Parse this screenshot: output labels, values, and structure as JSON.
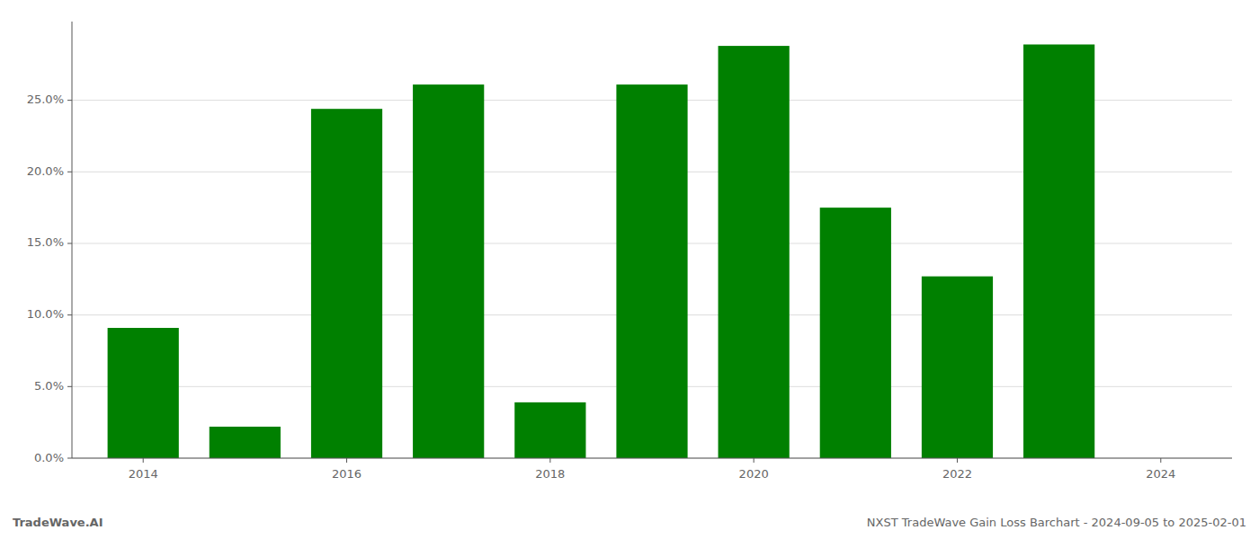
{
  "chart_data": {
    "type": "bar",
    "x": [
      2014,
      2015,
      2016,
      2017,
      2018,
      2019,
      2020,
      2021,
      2022,
      2023
    ],
    "values": [
      0.091,
      0.022,
      0.244,
      0.261,
      0.039,
      0.261,
      0.288,
      0.175,
      0.127,
      0.289
    ],
    "color": "#008000",
    "xlim": [
      2013.3,
      2024.7
    ],
    "xticks": [
      2014,
      2016,
      2018,
      2020,
      2022,
      2024
    ],
    "ylim": [
      0,
      0.305
    ],
    "yticks": [
      {
        "value": 0.0,
        "label": "0.0%"
      },
      {
        "value": 0.05,
        "label": "5.0%"
      },
      {
        "value": 0.1,
        "label": "10.0%"
      },
      {
        "value": 0.15,
        "label": "15.0%"
      },
      {
        "value": 0.2,
        "label": "20.0%"
      },
      {
        "value": 0.25,
        "label": "25.0%"
      }
    ],
    "grid": true,
    "annotations": [
      "TradeWave.AI",
      "NXST TradeWave Gain Loss Barchart - 2024-09-05 to 2025-02-01"
    ]
  }
}
